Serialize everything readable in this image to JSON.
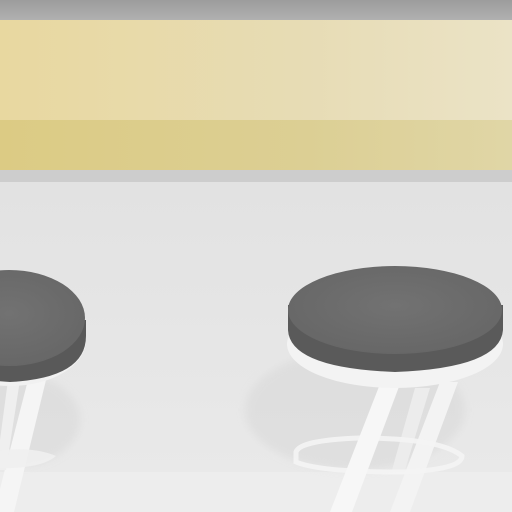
{
  "scene": {
    "description_visible_text": "",
    "colors": {
      "countertop_top": "#a7a7a7",
      "counter_top_band": "#e7d9a8",
      "counter_lower_band": "#d9c97f",
      "counter_edge": "#cfcfcf",
      "wall": "#e3e3e3",
      "floor": "#ececec",
      "seat_top": "#6e6e6e",
      "seat_side": "#595959",
      "seat_rim": "#f2f2f2",
      "legs": "#f4f4f4",
      "shadow": "#d9d9d9"
    }
  }
}
